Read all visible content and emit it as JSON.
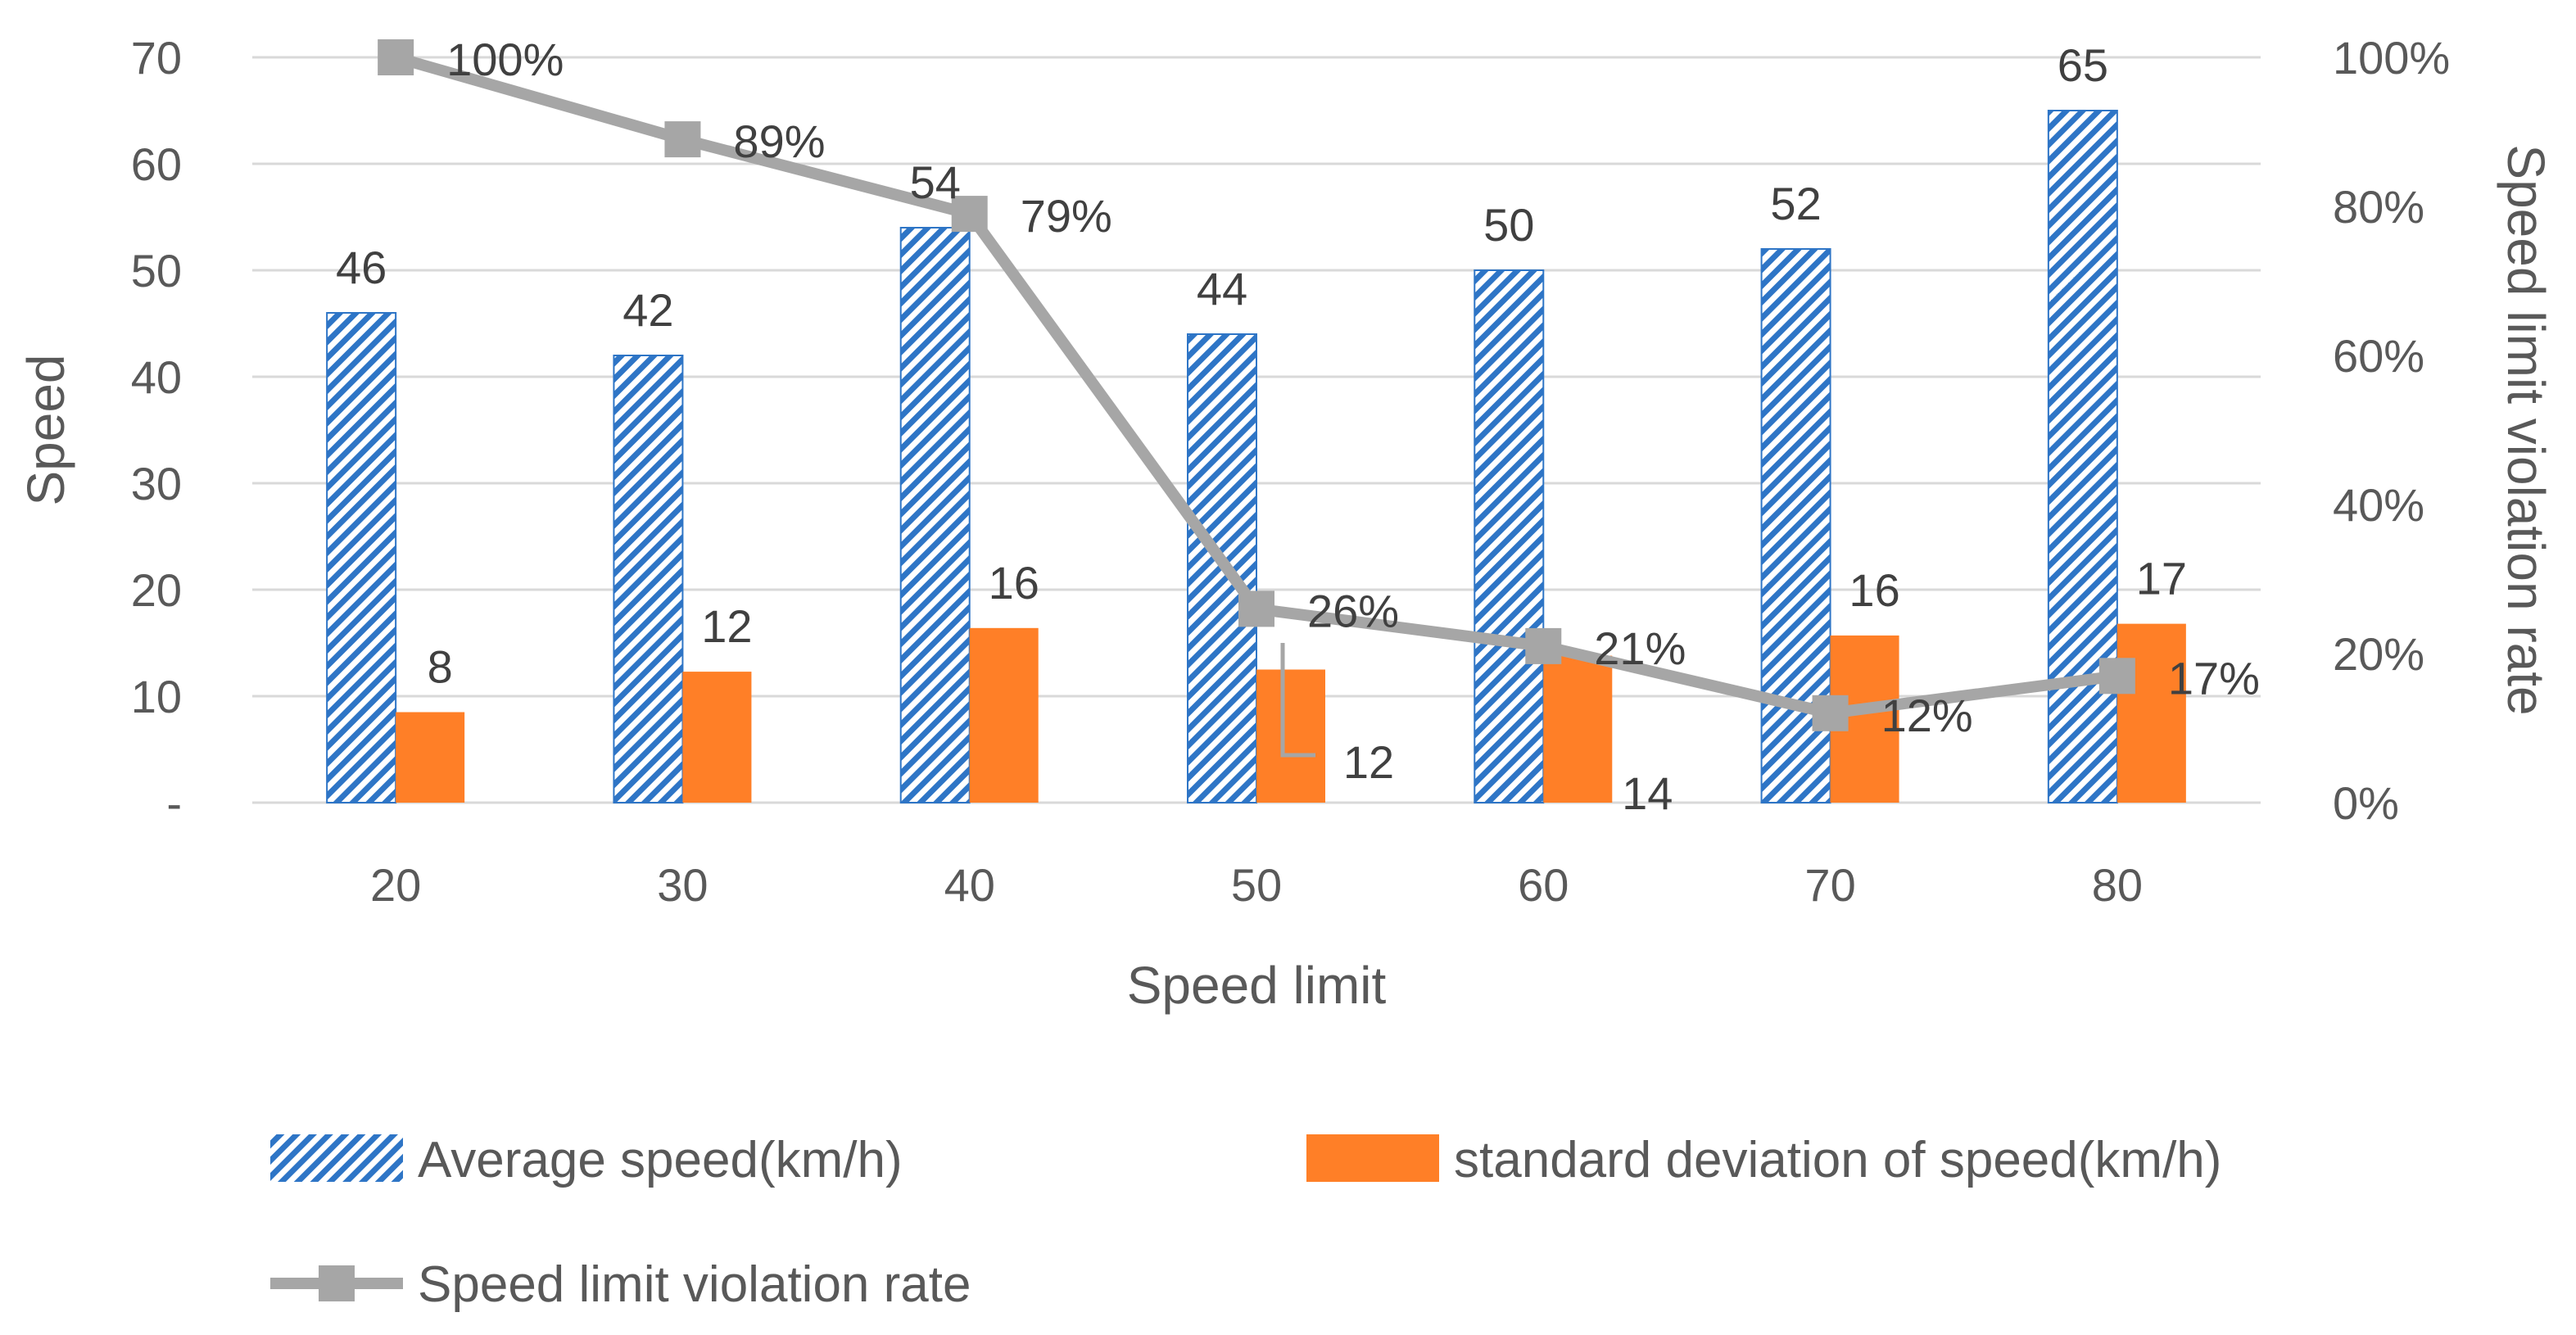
{
  "chart_data": {
    "type": "bar",
    "title": "",
    "xlabel": "Speed limit",
    "ylabel": "Speed",
    "y2label": "Speed limit violation rate",
    "categories": [
      "20",
      "30",
      "40",
      "50",
      "60",
      "70",
      "80"
    ],
    "ylim": [
      0,
      70
    ],
    "y_ticks": [
      "-",
      "10",
      "20",
      "30",
      "40",
      "50",
      "60",
      "70"
    ],
    "y2lim": [
      0,
      1
    ],
    "y2_ticks": [
      "0%",
      "20%",
      "40%",
      "60%",
      "80%",
      "100%"
    ],
    "series": [
      {
        "name": "Average speed(km/h)",
        "type": "bar",
        "axis": "left",
        "color": "#2E75C6",
        "pattern": "diagonal-stripes",
        "values": [
          46,
          42,
          54,
          44,
          50,
          52,
          65
        ],
        "labels": [
          "46",
          "42",
          "54",
          "44",
          "50",
          "52",
          "65"
        ]
      },
      {
        "name": "standard deviation of speed(km/h)",
        "type": "bar",
        "axis": "left",
        "color": "#FF7F27",
        "values": [
          8.5,
          12.3,
          16.4,
          12.5,
          13.8,
          15.7,
          16.8
        ],
        "labels": [
          "8",
          "12",
          "16",
          "12",
          "14",
          "16",
          "17"
        ]
      },
      {
        "name": "Speed limit violation rate",
        "type": "line",
        "axis": "right",
        "color": "#A6A6A6",
        "marker": "square",
        "values": [
          1.0,
          0.89,
          0.79,
          0.26,
          0.21,
          0.12,
          0.17
        ],
        "labels": [
          "100%",
          "89%",
          "79%",
          "26%",
          "21%",
          "12%",
          "17%"
        ]
      }
    ],
    "legend": {
      "position": "bottom"
    },
    "grid": true
  }
}
